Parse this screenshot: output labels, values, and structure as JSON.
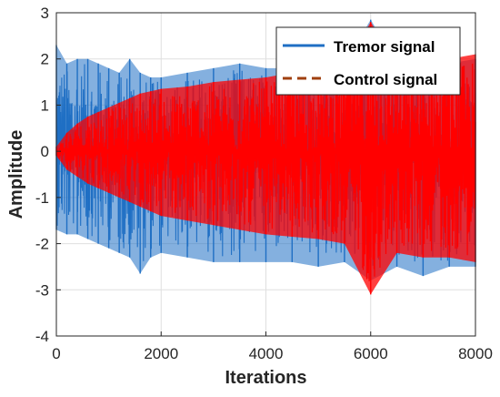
{
  "chart_data": {
    "type": "line",
    "title": "",
    "xlabel": "Iterations",
    "ylabel": "Amplitude",
    "xlim": [
      0,
      8000
    ],
    "ylim": [
      -4,
      3
    ],
    "x_ticks": [
      0,
      2000,
      4000,
      6000,
      8000
    ],
    "y_ticks": [
      -4,
      -3,
      -2,
      -1,
      0,
      1,
      2,
      3
    ],
    "x_tick_labels": [
      "0",
      "2000",
      "4000",
      "6000",
      "8000"
    ],
    "y_tick_labels": [
      "-4",
      "-3",
      "-2",
      "-1",
      "0",
      "1",
      "2",
      "3"
    ],
    "grid": true,
    "legend_position": "top-right",
    "series": [
      {
        "name": "Tremor signal",
        "color": "#1f6fc4",
        "style": "solid",
        "x": [
          0,
          200,
          400,
          600,
          800,
          1000,
          1200,
          1400,
          1600,
          1800,
          2000,
          2500,
          3000,
          3500,
          4000,
          4500,
          5000,
          5500,
          6000,
          6500,
          7000,
          7500,
          8000
        ],
        "upper": [
          2.3,
          1.9,
          2.0,
          2.0,
          1.9,
          1.8,
          1.7,
          2.0,
          1.7,
          1.6,
          1.6,
          1.7,
          1.8,
          1.9,
          1.8,
          1.8,
          1.7,
          1.9,
          2.85,
          1.9,
          1.8,
          1.9,
          2.0
        ],
        "lower": [
          -1.7,
          -1.8,
          -1.8,
          -1.9,
          -2.0,
          -2.1,
          -2.2,
          -2.3,
          -2.65,
          -2.3,
          -2.2,
          -2.3,
          -2.4,
          -2.4,
          -2.4,
          -2.4,
          -2.5,
          -2.4,
          -2.8,
          -2.5,
          -2.7,
          -2.5,
          -2.5
        ]
      },
      {
        "name": "Control signal",
        "color": "#ff0000",
        "style": "dashed",
        "x": [
          0,
          200,
          400,
          600,
          800,
          1000,
          1200,
          1400,
          1600,
          1800,
          2000,
          2500,
          3000,
          3500,
          4000,
          4500,
          5000,
          5500,
          6000,
          6500,
          7000,
          7500,
          8000
        ],
        "upper": [
          0.1,
          0.4,
          0.6,
          0.75,
          0.85,
          0.95,
          1.05,
          1.15,
          1.25,
          1.3,
          1.35,
          1.4,
          1.5,
          1.55,
          1.6,
          1.7,
          1.75,
          1.8,
          2.8,
          1.9,
          1.9,
          2.0,
          2.1
        ],
        "lower": [
          -0.1,
          -0.4,
          -0.55,
          -0.7,
          -0.8,
          -0.9,
          -1.0,
          -1.1,
          -1.2,
          -1.3,
          -1.4,
          -1.5,
          -1.6,
          -1.7,
          -1.8,
          -1.85,
          -1.9,
          -2.0,
          -3.1,
          -2.2,
          -2.3,
          -2.3,
          -2.4
        ]
      }
    ]
  }
}
